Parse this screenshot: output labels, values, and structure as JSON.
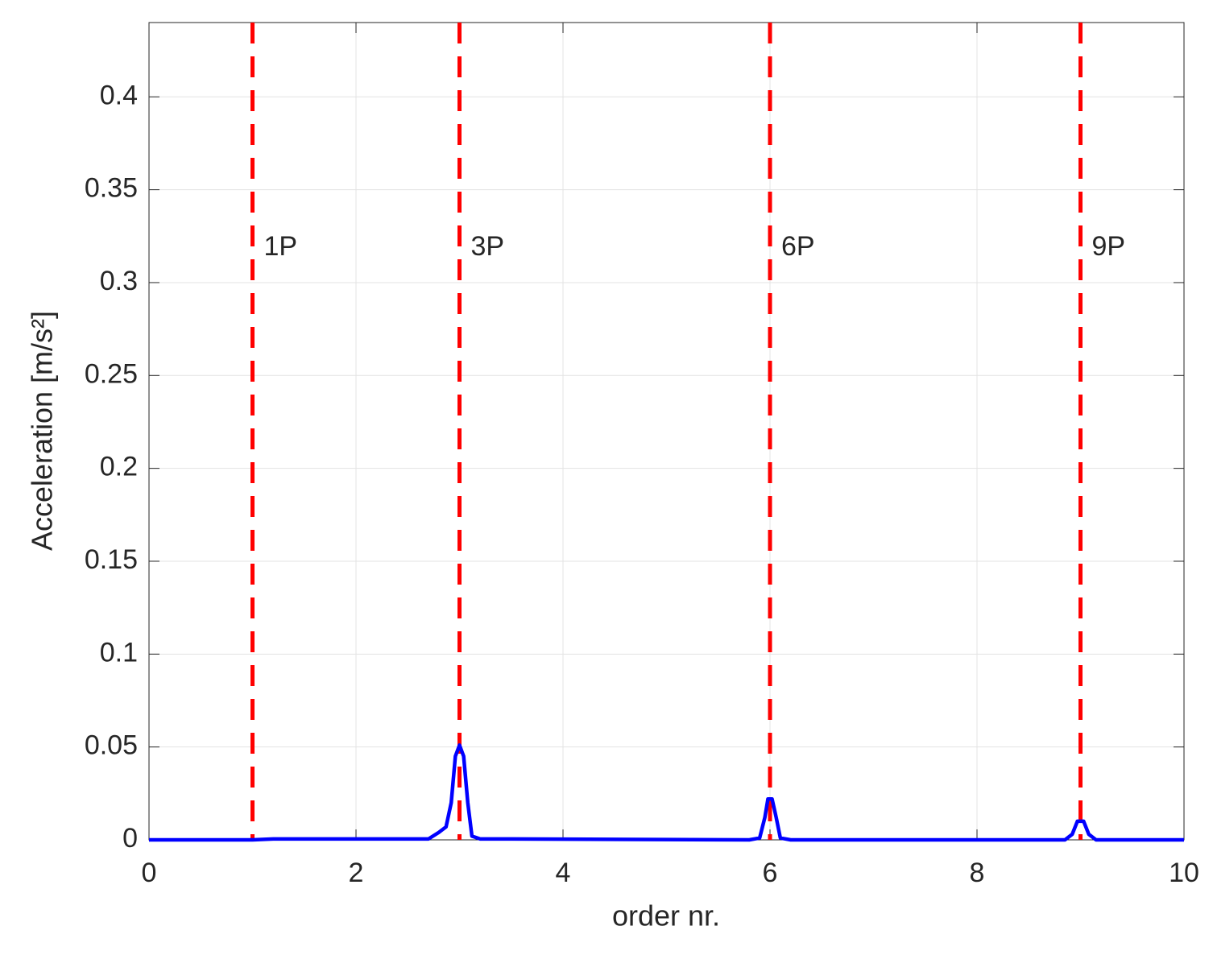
{
  "chart_data": {
    "type": "line",
    "xlabel": "order nr.",
    "ylabel": "Acceleration [m/s²]",
    "xlim": [
      0,
      10
    ],
    "ylim": [
      0,
      0.44
    ],
    "xticks": [
      0,
      2,
      4,
      6,
      8,
      10
    ],
    "yticks": [
      0,
      0.05,
      0.1,
      0.15,
      0.2,
      0.25,
      0.3,
      0.35,
      0.4
    ],
    "grid": true,
    "x": [
      0,
      1,
      1.2,
      2.4,
      2.7,
      2.8,
      2.87,
      2.92,
      2.96,
      3.0,
      3.04,
      3.08,
      3.12,
      3.2,
      3.4,
      5.8,
      5.9,
      5.95,
      5.98,
      6.02,
      6.06,
      6.1,
      6.2,
      8.85,
      8.92,
      8.97,
      9.03,
      9.08,
      9.15,
      10
    ],
    "series": [
      {
        "color": "#0000ff",
        "values": [
          0,
          0,
          0.0005,
          0.0005,
          0.0005,
          0.004,
          0.007,
          0.02,
          0.045,
          0.051,
          0.045,
          0.02,
          0.002,
          0.0005,
          0.0005,
          0,
          0.001,
          0.012,
          0.022,
          0.022,
          0.012,
          0.001,
          0,
          0,
          0.003,
          0.01,
          0.01,
          0.003,
          0,
          0
        ]
      }
    ],
    "reference_lines": {
      "color": "#ff0000",
      "lines": [
        {
          "x": 1,
          "label": "1P"
        },
        {
          "x": 3,
          "label": "3P"
        },
        {
          "x": 6,
          "label": "6P"
        },
        {
          "x": 9,
          "label": "9P"
        }
      ]
    }
  }
}
